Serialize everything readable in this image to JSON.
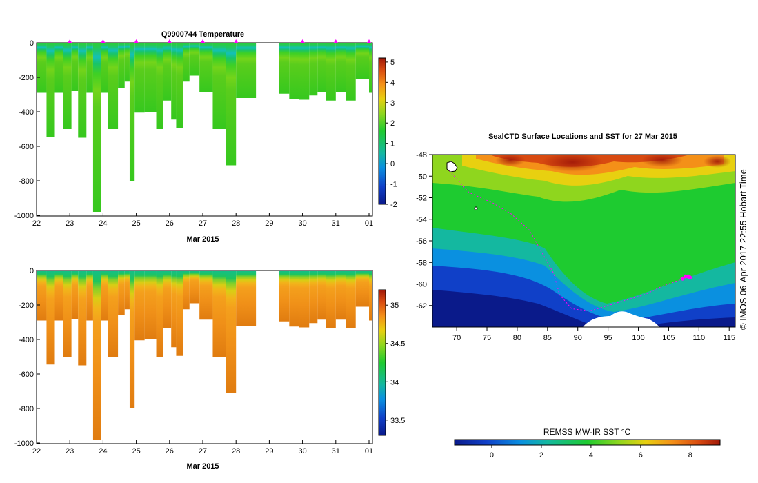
{
  "chart_data": [
    {
      "type": "heatmap",
      "name": "temperature-section",
      "title": "Q9900744  Temperature",
      "xlabel": "Mar 2015",
      "ylabel": "",
      "x_ticks": [
        "22",
        "23",
        "24",
        "25",
        "26",
        "27",
        "28",
        "29",
        "30",
        "31",
        "01"
      ],
      "y_ticks": [
        "0",
        "-200",
        "-400",
        "-600",
        "-800",
        "-1000"
      ],
      "ylim": [
        -1000,
        0
      ],
      "xlim": [
        22,
        32
      ],
      "colorbar": {
        "min": -2,
        "max": 5.2,
        "ticks": [
          "-2",
          "-1",
          "0",
          "1",
          "2",
          "3",
          "4",
          "5"
        ]
      },
      "profile_markers_day": [
        23,
        24,
        25,
        26,
        27,
        28,
        30,
        31,
        32
      ],
      "profiles": [
        {
          "start": 22.0,
          "end": 22.3,
          "depth": 290
        },
        {
          "start": 22.3,
          "end": 22.55,
          "depth": 545
        },
        {
          "start": 22.55,
          "end": 22.8,
          "depth": 290
        },
        {
          "start": 22.8,
          "end": 23.05,
          "depth": 500
        },
        {
          "start": 23.05,
          "end": 23.25,
          "depth": 280
        },
        {
          "start": 23.25,
          "end": 23.5,
          "depth": 550
        },
        {
          "start": 23.5,
          "end": 23.7,
          "depth": 290
        },
        {
          "start": 23.7,
          "end": 23.95,
          "depth": 980
        },
        {
          "start": 23.95,
          "end": 24.15,
          "depth": 290
        },
        {
          "start": 24.15,
          "end": 24.45,
          "depth": 500
        },
        {
          "start": 24.45,
          "end": 24.65,
          "depth": 260
        },
        {
          "start": 24.65,
          "end": 24.8,
          "depth": 225
        },
        {
          "start": 24.8,
          "end": 24.95,
          "depth": 800
        },
        {
          "start": 24.95,
          "end": 25.25,
          "depth": 405
        },
        {
          "start": 25.25,
          "end": 25.6,
          "depth": 400
        },
        {
          "start": 25.6,
          "end": 25.8,
          "depth": 500
        },
        {
          "start": 25.8,
          "end": 26.05,
          "depth": 335
        },
        {
          "start": 26.05,
          "end": 26.2,
          "depth": 445
        },
        {
          "start": 26.2,
          "end": 26.4,
          "depth": 495
        },
        {
          "start": 26.4,
          "end": 26.6,
          "depth": 225
        },
        {
          "start": 26.6,
          "end": 26.9,
          "depth": 190
        },
        {
          "start": 26.9,
          "end": 27.3,
          "depth": 285
        },
        {
          "start": 27.3,
          "end": 27.7,
          "depth": 500
        },
        {
          "start": 27.7,
          "end": 28.0,
          "depth": 710
        },
        {
          "start": 28.0,
          "end": 28.6,
          "depth": 320
        },
        {
          "start": 29.3,
          "end": 29.6,
          "depth": 295
        },
        {
          "start": 29.6,
          "end": 29.9,
          "depth": 325
        },
        {
          "start": 29.9,
          "end": 30.2,
          "depth": 330
        },
        {
          "start": 30.2,
          "end": 30.45,
          "depth": 305
        },
        {
          "start": 30.45,
          "end": 30.7,
          "depth": 285
        },
        {
          "start": 30.7,
          "end": 31.0,
          "depth": 335
        },
        {
          "start": 31.0,
          "end": 31.3,
          "depth": 285
        },
        {
          "start": 31.3,
          "end": 31.6,
          "depth": 335
        },
        {
          "start": 31.6,
          "end": 32.0,
          "depth": 210
        },
        {
          "start": 32.0,
          "end": 32.1,
          "depth": 290
        }
      ]
    },
    {
      "type": "heatmap",
      "name": "salinity-section",
      "title": "",
      "xlabel": "Mar 2015",
      "x_ticks": [
        "22",
        "23",
        "24",
        "25",
        "26",
        "27",
        "28",
        "29",
        "30",
        "31",
        "01"
      ],
      "y_ticks": [
        "0",
        "-200",
        "-400",
        "-600",
        "-800",
        "-1000"
      ],
      "ylim": [
        -1000,
        0
      ],
      "xlim": [
        22,
        32
      ],
      "colorbar": {
        "min": 33.3,
        "max": 35.2,
        "ticks": [
          "33.5",
          "34",
          "34.5",
          "35"
        ]
      }
    },
    {
      "type": "heatmap",
      "name": "sst-map",
      "title": "SealCTD Surface Locations and SST for 27 Mar 2015",
      "x_ticks": [
        "70",
        "75",
        "80",
        "85",
        "90",
        "95",
        "100",
        "105",
        "110",
        "115"
      ],
      "y_ticks": [
        "-48",
        "-50",
        "-52",
        "-54",
        "-56",
        "-58",
        "-60",
        "-62"
      ],
      "xlim": [
        66,
        116
      ],
      "ylim": [
        -64,
        -48
      ],
      "colorbar": {
        "label": "REMSS MW-IR SST °C",
        "min": -1.5,
        "max": 9.2,
        "ticks": [
          "0",
          "2",
          "4",
          "6",
          "8"
        ]
      },
      "seal_track": [
        [
          68.8,
          -49.5
        ],
        [
          72,
          -51.5
        ],
        [
          76,
          -52.5
        ],
        [
          79,
          -53.5
        ],
        [
          82,
          -55
        ],
        [
          84,
          -57
        ],
        [
          86,
          -59
        ],
        [
          87,
          -61
        ],
        [
          89,
          -62.3
        ],
        [
          92,
          -62.5
        ],
        [
          95,
          -62
        ],
        [
          98,
          -61.5
        ],
        [
          101,
          -61
        ],
        [
          104,
          -60.2
        ],
        [
          106.5,
          -59.7
        ],
        [
          108,
          -59.4
        ]
      ],
      "seal_recent": [
        [
          107.3,
          -59.5
        ],
        [
          107.8,
          -59.3
        ],
        [
          108.2,
          -59.3
        ],
        [
          108.5,
          -59.4
        ]
      ]
    }
  ],
  "side_text": "©  IMOS 06-Apr-2017 22:55 Hobart Time",
  "colors": {
    "marker": "#ff00ff",
    "land": "#ffffff",
    "missing": "#ffffff"
  }
}
